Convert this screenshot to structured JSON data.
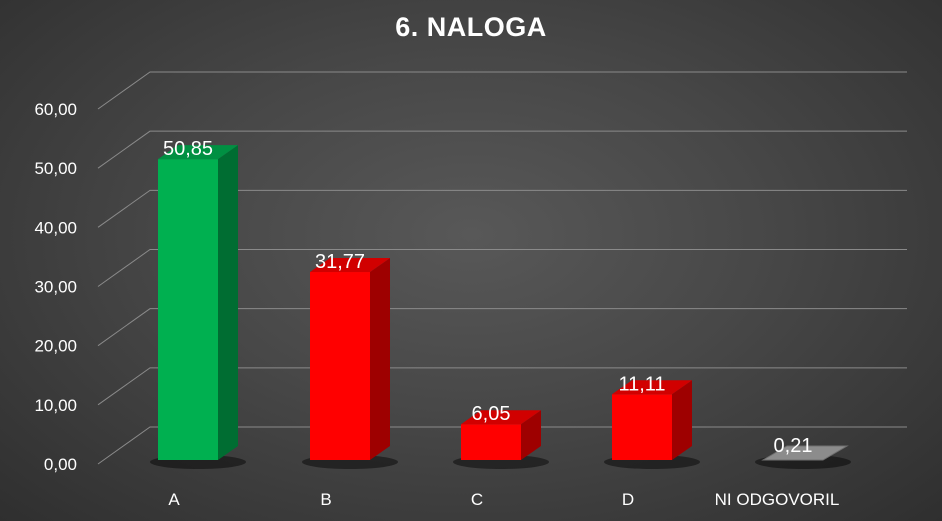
{
  "chart_data": {
    "type": "bar",
    "title": "6. NALOGA",
    "categories": [
      "A",
      "B",
      "C",
      "D",
      "NI ODGOVORIL"
    ],
    "values": [
      50.85,
      31.77,
      6.05,
      11.11,
      0.21
    ],
    "value_labels": [
      "50,85",
      "31,77",
      "6,05",
      "11,11",
      "0,21"
    ],
    "ylim": [
      0,
      60
    ],
    "y_ticks": [
      "0,00",
      "10,00",
      "20,00",
      "30,00",
      "40,00",
      "50,00",
      "60,00"
    ],
    "grid": true,
    "legend": "none",
    "style": "3d-column",
    "bar_colors": [
      "#00b050",
      "#ff0000",
      "#ff0000",
      "#ff0000",
      "#808080"
    ]
  }
}
